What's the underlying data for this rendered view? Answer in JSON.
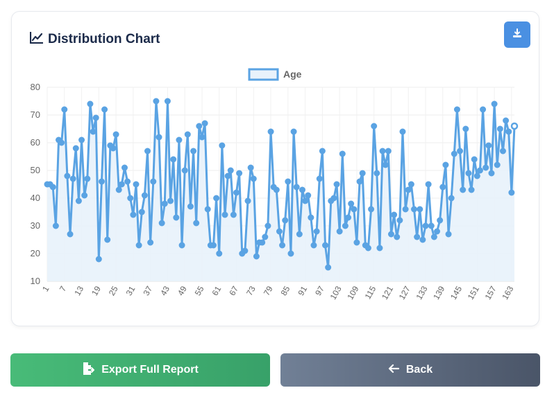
{
  "card": {
    "title": "Distribution Chart",
    "title_icon": "line-chart-icon",
    "download_icon": "download-icon"
  },
  "buttons": {
    "export_label": "Export Full Report",
    "export_icon": "file-export-icon",
    "back_label": "Back",
    "back_icon": "arrow-left-icon"
  },
  "colors": {
    "line": "#5aa3e3",
    "fill": "#e8f2fb",
    "export_start": "#48bb78",
    "export_end": "#38a169",
    "back_start": "#718096",
    "back_end": "#4a5568",
    "download": "#4a90e2"
  },
  "chart_data": {
    "type": "line",
    "title": "",
    "xlabel": "",
    "ylabel": "",
    "legend": {
      "position": "top",
      "entries": [
        "Age"
      ]
    },
    "grid": true,
    "ylim": [
      10,
      80
    ],
    "yticks": [
      10,
      20,
      30,
      40,
      50,
      60,
      70,
      80
    ],
    "xtick_labels": [
      "1",
      "7",
      "13",
      "19",
      "25",
      "31",
      "37",
      "43",
      "49",
      "55",
      "61",
      "67",
      "73",
      "79",
      "85",
      "91",
      "97",
      "103",
      "109",
      "115",
      "121",
      "127",
      "133",
      "139",
      "145",
      "151",
      "157",
      "163"
    ],
    "series": [
      {
        "name": "Age",
        "values": [
          45,
          45,
          44,
          30,
          61,
          60,
          72,
          48,
          27,
          47,
          58,
          39,
          61,
          41,
          47,
          74,
          64,
          69,
          18,
          46,
          72,
          25,
          59,
          58,
          63,
          43,
          45,
          51,
          46,
          40,
          34,
          45,
          23,
          35,
          41,
          57,
          24,
          46,
          75,
          62,
          31,
          38,
          75,
          39,
          54,
          33,
          61,
          23,
          50,
          63,
          37,
          57,
          31,
          66,
          62,
          67,
          36,
          23,
          23,
          40,
          20,
          59,
          34,
          48,
          50,
          34,
          42,
          49,
          20,
          21,
          39,
          51,
          47,
          19,
          24,
          24,
          26,
          30,
          64,
          44,
          43,
          28,
          23,
          32,
          46,
          20,
          64,
          44,
          27,
          43,
          39,
          41,
          33,
          23,
          28,
          47,
          57,
          23,
          15,
          39,
          40,
          45,
          28,
          56,
          30,
          33,
          38,
          36,
          24,
          46,
          49,
          23,
          22,
          36,
          66,
          49,
          22,
          57,
          52,
          57,
          27,
          34,
          26,
          32,
          64,
          36,
          43,
          45,
          36,
          26,
          36,
          25,
          30,
          45,
          30,
          26,
          28,
          32,
          44,
          52,
          27,
          40,
          56,
          72,
          57,
          43,
          65,
          49,
          43,
          54,
          48,
          50,
          72,
          51,
          59,
          49,
          74,
          52,
          65,
          57,
          68,
          64,
          42,
          66
        ]
      }
    ]
  }
}
